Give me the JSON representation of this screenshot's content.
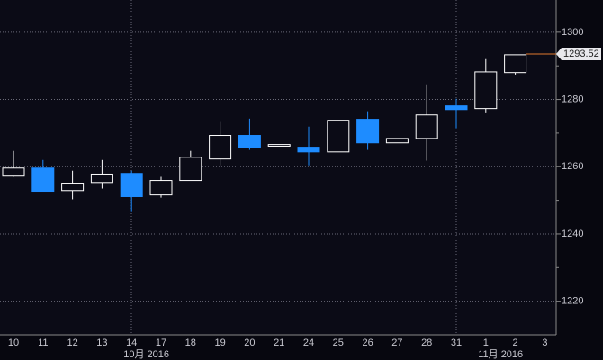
{
  "chart_data": {
    "type": "candlestick",
    "categories": [
      "10",
      "11",
      "12",
      "13",
      "14",
      "17",
      "18",
      "19",
      "20",
      "21",
      "24",
      "25",
      "26",
      "27",
      "28",
      "31",
      "1",
      "2",
      "3"
    ],
    "open": [
      1257.2,
      1259.6,
      1252.9,
      1255.3,
      1258.0,
      1251.6,
      1255.9,
      1262.3,
      1269.3,
      1266.1,
      1265.8,
      1264.4,
      1274.1,
      1267.1,
      1268.4,
      1278.1,
      1277.3,
      1288.0,
      null
    ],
    "high": [
      1264.7,
      1262.0,
      1258.8,
      1262.0,
      1258.8,
      1257.0,
      1264.7,
      1273.3,
      1274.3,
      1266.6,
      1271.9,
      1273.8,
      1276.5,
      1268.4,
      1284.5,
      1280.2,
      1292.0,
      1293.3,
      null
    ],
    "low": [
      1257.0,
      1252.7,
      1250.3,
      1253.5,
      1246.5,
      1250.8,
      1255.9,
      1260.4,
      1265.0,
      1266.1,
      1260.4,
      1264.4,
      1265.0,
      1267.1,
      1261.8,
      1271.4,
      1275.9,
      1287.4,
      null
    ],
    "close": [
      1259.6,
      1252.7,
      1255.1,
      1257.8,
      1251.1,
      1255.9,
      1262.8,
      1269.3,
      1265.8,
      1266.6,
      1264.4,
      1273.8,
      1267.1,
      1268.4,
      1275.4,
      1277.0,
      1288.2,
      1293.3,
      null
    ],
    "up_color": "#ffffff",
    "down_color": "#1e8cff",
    "ylim": [
      1210,
      1309.6
    ],
    "yticks": [
      1220,
      1240,
      1260,
      1280,
      1300
    ],
    "minor_yticks": [
      1230,
      1250,
      1270,
      1290
    ],
    "grid": true,
    "month_labels": [
      "10月 2016",
      "11月 2016"
    ],
    "last_price": 1293.52,
    "last_price_color": "#e0782e"
  }
}
